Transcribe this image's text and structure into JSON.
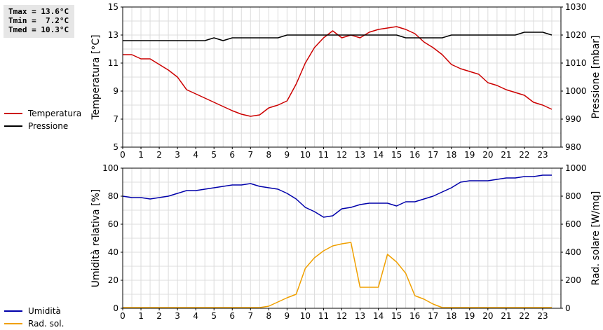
{
  "stats": {
    "tmax": "Tmax = 13.6°C",
    "tmin": "Tmin =  7.2°C",
    "tmed": "Tmed = 10.3°C"
  },
  "legend_top": [
    {
      "label": "Temperatura",
      "color": "#cc0000"
    },
    {
      "label": "Pressione",
      "color": "#000000"
    }
  ],
  "legend_bottom": [
    {
      "label": "Umidità",
      "color": "#0000aa"
    },
    {
      "label": "Rad. sol.",
      "color": "#f0a000"
    }
  ],
  "chart_data": [
    {
      "type": "line",
      "x_ticks": [
        "0",
        "1",
        "2",
        "3",
        "4",
        "5",
        "6",
        "7",
        "8",
        "9",
        "10",
        "11",
        "12",
        "13",
        "14",
        "15",
        "16",
        "17",
        "18",
        "19",
        "20",
        "21",
        "22",
        "23"
      ],
      "xlim": [
        0,
        24
      ],
      "grid": true,
      "legend": "left",
      "y_left": {
        "label": "Temperatura [°C]",
        "lim": [
          5,
          15
        ],
        "ticks": [
          "5",
          "7",
          "9",
          "11",
          "13",
          "15"
        ]
      },
      "y_right": {
        "label": "Pressione [mbar]",
        "lim": [
          980,
          1030
        ],
        "ticks": [
          "980",
          "990",
          "1000",
          "1010",
          "1020",
          "1030"
        ]
      },
      "series": [
        {
          "name": "Temperatura",
          "axis": "left",
          "color": "#cc0000",
          "x": [
            0,
            0.5,
            1,
            1.5,
            2,
            2.5,
            3,
            3.5,
            4,
            4.5,
            5,
            5.5,
            6,
            6.5,
            7,
            7.5,
            8,
            8.5,
            9,
            9.5,
            10,
            10.5,
            11,
            11.5,
            12,
            12.5,
            13,
            13.5,
            14,
            14.5,
            15,
            15.5,
            16,
            16.5,
            17,
            17.5,
            18,
            18.5,
            19,
            19.5,
            20,
            20.5,
            21,
            21.5,
            22,
            22.5,
            23,
            23.5
          ],
          "y": [
            11.6,
            11.6,
            11.3,
            11.3,
            10.9,
            10.5,
            10.0,
            9.1,
            8.8,
            8.5,
            8.2,
            7.9,
            7.6,
            7.35,
            7.2,
            7.3,
            7.8,
            8.0,
            8.3,
            9.5,
            11.0,
            12.1,
            12.8,
            13.3,
            12.8,
            13.0,
            12.8,
            13.2,
            13.4,
            13.5,
            13.6,
            13.4,
            13.1,
            12.5,
            12.1,
            11.6,
            10.9,
            10.6,
            10.4,
            10.2,
            9.6,
            9.4,
            9.1,
            8.9,
            8.7,
            8.2,
            8.0,
            7.7
          ]
        },
        {
          "name": "Pressione",
          "axis": "right",
          "color": "#000000",
          "x": [
            0,
            0.5,
            1,
            1.5,
            2,
            2.5,
            3,
            3.5,
            4,
            4.5,
            5,
            5.5,
            6,
            6.5,
            7,
            7.5,
            8,
            8.5,
            9,
            9.5,
            10,
            10.5,
            11,
            11.5,
            12,
            12.5,
            13,
            13.5,
            14,
            14.5,
            15,
            15.5,
            16,
            16.5,
            17,
            17.5,
            18,
            18.5,
            19,
            19.5,
            20,
            20.5,
            21,
            21.5,
            22,
            22.5,
            23,
            23.5
          ],
          "y": [
            1018,
            1018,
            1018,
            1018,
            1018,
            1018,
            1018,
            1018,
            1018,
            1018,
            1019,
            1018,
            1019,
            1019,
            1019,
            1019,
            1019,
            1019,
            1020,
            1020,
            1020,
            1020,
            1020,
            1020,
            1020,
            1020,
            1020,
            1020,
            1020,
            1020,
            1020,
            1019,
            1019,
            1019,
            1019,
            1019,
            1020,
            1020,
            1020,
            1020,
            1020,
            1020,
            1020,
            1020,
            1021,
            1021,
            1021,
            1020
          ]
        }
      ]
    },
    {
      "type": "line",
      "x_ticks": [
        "0",
        "1",
        "2",
        "3",
        "4",
        "5",
        "6",
        "7",
        "8",
        "9",
        "10",
        "11",
        "12",
        "13",
        "14",
        "15",
        "16",
        "17",
        "18",
        "19",
        "20",
        "21",
        "22",
        "23"
      ],
      "xlim": [
        0,
        24
      ],
      "grid": true,
      "legend": "left",
      "y_left": {
        "label": "Umidità relativa [%]",
        "lim": [
          0,
          100
        ],
        "ticks": [
          "0",
          "20",
          "40",
          "60",
          "80",
          "100"
        ]
      },
      "y_right": {
        "label": "Rad. solare [W/mq]",
        "lim": [
          0,
          1000
        ],
        "ticks": [
          "0",
          "200",
          "400",
          "600",
          "800",
          "1000"
        ]
      },
      "series": [
        {
          "name": "Umidità",
          "axis": "left",
          "color": "#0000aa",
          "x": [
            0,
            0.5,
            1,
            1.5,
            2,
            2.5,
            3,
            3.5,
            4,
            4.5,
            5,
            5.5,
            6,
            6.5,
            7,
            7.5,
            8,
            8.5,
            9,
            9.5,
            10,
            10.5,
            11,
            11.5,
            12,
            12.5,
            13,
            13.5,
            14,
            14.5,
            15,
            15.5,
            16,
            16.5,
            17,
            17.5,
            18,
            18.5,
            19,
            19.5,
            20,
            20.5,
            21,
            21.5,
            22,
            22.5,
            23,
            23.5
          ],
          "y": [
            80,
            79,
            79,
            78,
            79,
            80,
            82,
            84,
            84,
            85,
            86,
            87,
            88,
            88,
            89,
            87,
            86,
            85,
            82,
            78,
            72,
            69,
            65,
            66,
            71,
            72,
            74,
            75,
            75,
            75,
            73,
            76,
            76,
            78,
            80,
            83,
            86,
            90,
            91,
            91,
            91,
            92,
            93,
            93,
            94,
            94,
            95,
            95
          ]
        },
        {
          "name": "Rad. sol.",
          "axis": "right",
          "color": "#f0a000",
          "x": [
            0,
            0.5,
            1,
            1.5,
            2,
            2.5,
            3,
            3.5,
            4,
            4.5,
            5,
            5.5,
            6,
            6.5,
            7,
            7.5,
            8,
            8.5,
            9,
            9.5,
            10,
            10.5,
            11,
            11.5,
            12,
            12.5,
            13,
            13.5,
            14,
            14.5,
            15,
            15.5,
            16,
            16.5,
            17,
            17.5,
            18,
            18.5,
            19,
            19.5,
            20,
            20.5,
            21,
            21.5,
            22,
            22.5,
            23,
            23.5
          ],
          "y": [
            5,
            5,
            5,
            5,
            5,
            5,
            5,
            5,
            5,
            5,
            5,
            5,
            5,
            5,
            5,
            5,
            15,
            45,
            75,
            100,
            285,
            360,
            410,
            445,
            460,
            470,
            150,
            150,
            150,
            385,
            330,
            250,
            90,
            65,
            30,
            5,
            5,
            5,
            5,
            5,
            5,
            5,
            5,
            5,
            5,
            5,
            5,
            5
          ]
        }
      ]
    }
  ]
}
